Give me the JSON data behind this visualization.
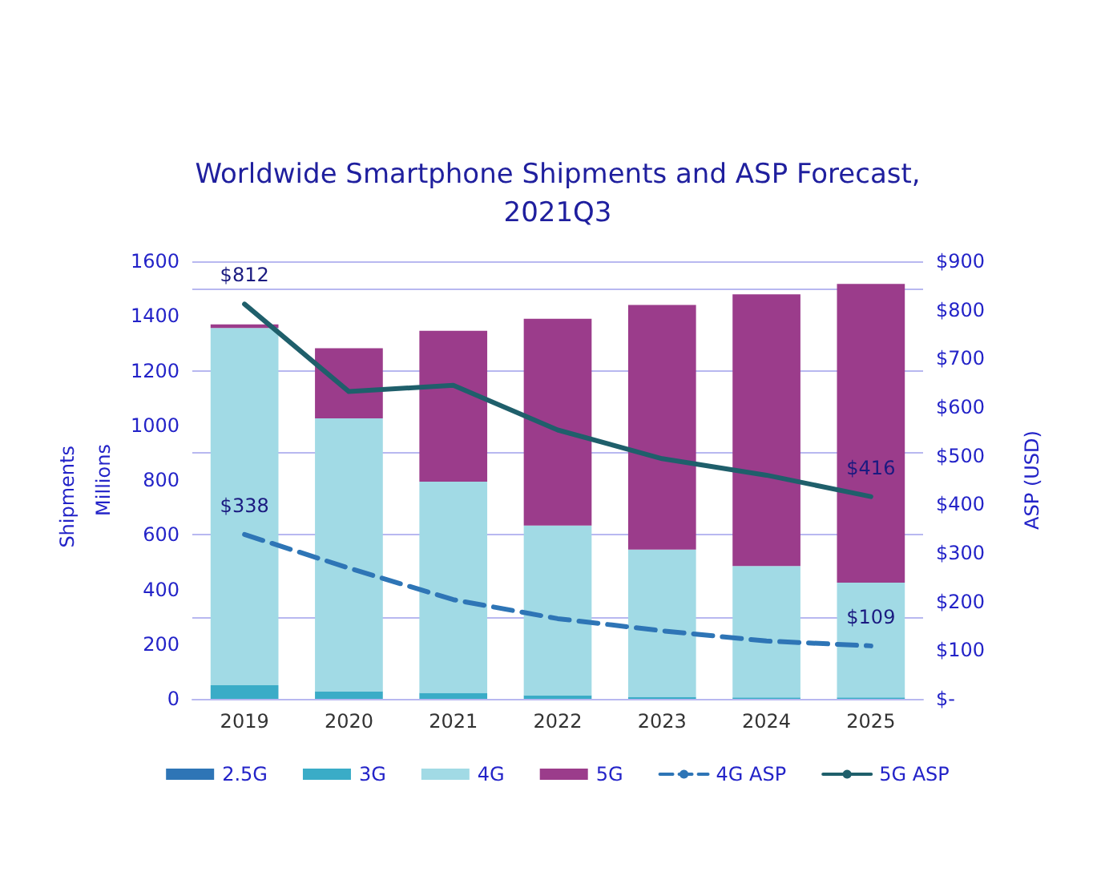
{
  "chart_data": {
    "type": "bar",
    "title": "Worldwide Smartphone Shipments and ASP Forecast,\n2021Q3",
    "ylabel": "Millions",
    "y2label": "ASP (USD)",
    "annotations": [
      "Shipments"
    ],
    "categories": [
      "2019",
      "2020",
      "2021",
      "2022",
      "2023",
      "2024",
      "2025"
    ],
    "stacked": true,
    "grid": "y",
    "legend": "bottom",
    "marker": "none",
    "ylim": [
      0,
      1600
    ],
    "yticks": [
      0,
      200,
      400,
      600,
      800,
      1000,
      1200,
      1400,
      1600
    ],
    "y2lim": [
      0,
      900
    ],
    "y2ticks": [
      {
        "value": 0,
        "label": "$-"
      },
      {
        "value": 100,
        "label": "$100"
      },
      {
        "value": 200,
        "label": "$200"
      },
      {
        "value": 300,
        "label": "$300"
      },
      {
        "value": 400,
        "label": "$400"
      },
      {
        "value": 500,
        "label": "$500"
      },
      {
        "value": 600,
        "label": "$600"
      },
      {
        "value": 700,
        "label": "$700"
      },
      {
        "value": 800,
        "label": "$800"
      },
      {
        "value": 900,
        "label": "$900"
      }
    ],
    "series": [
      {
        "name": "2.5G",
        "color": "#2e75b6",
        "values": [
          null,
          null,
          null,
          null,
          null,
          null,
          null
        ]
      },
      {
        "name": "3G",
        "color": "#3aacc7",
        "values": [
          50,
          28,
          22,
          13,
          7,
          5,
          5
        ]
      },
      {
        "name": "4G",
        "color": "#a1dae5",
        "values": [
          1306,
          998,
          772,
          621,
          539,
          481,
          420
        ]
      },
      {
        "name": "5G",
        "color": "#9b3c8b",
        "values": [
          13,
          256,
          552,
          756,
          894,
          993,
          1092
        ]
      },
      {
        "name": "4G ASP",
        "type": "line",
        "axis": "y2",
        "line_style": "dashed",
        "color": "#2e75b6",
        "values": [
          338,
          269,
          204,
          165,
          140,
          119,
          109
        ],
        "value_labels": [
          "$338",
          null,
          null,
          null,
          null,
          null,
          "$109"
        ]
      },
      {
        "name": "5G ASP",
        "type": "line",
        "axis": "y2",
        "line_style": "solid",
        "color": "#1f5f6b",
        "values": [
          812,
          632,
          645,
          553,
          494,
          460,
          416
        ],
        "value_labels": [
          "$812",
          null,
          null,
          null,
          null,
          null,
          "$416"
        ]
      }
    ]
  }
}
